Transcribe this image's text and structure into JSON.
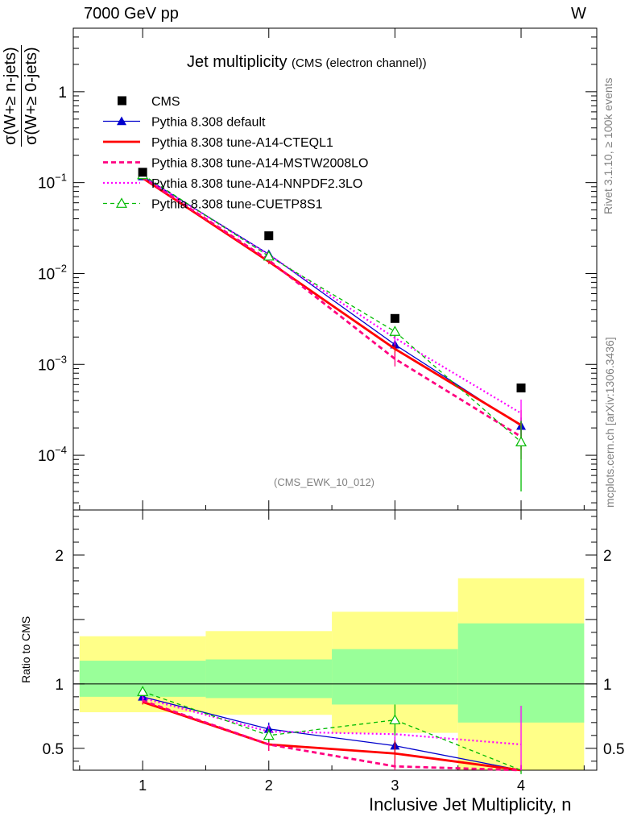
{
  "header": {
    "left": "7000 GeV pp",
    "right": "W"
  },
  "side_labels": {
    "rivet": "Rivet 3.1.10, ≥ 100k events",
    "mcplots": "mcplots.cern.ch [arXiv:1306.3436]"
  },
  "plot_title": {
    "main": "Jet multiplicity",
    "sub": "(CMS (electron channel))"
  },
  "analysis_tag": "(CMS_EWK_10_012)",
  "colors": {
    "data": "#000000",
    "default": "#0000cc",
    "cteql1": "#ff0000",
    "mstw": "#ff0080",
    "nnpdf": "#ff00ff",
    "cuetp8s1": "#00bb00",
    "band_outer": "#ffff88",
    "band_inner": "#99ff99",
    "side_text": "#808080"
  },
  "chart_data": [
    {
      "type": "scatter",
      "panel": "main",
      "title": "Jet multiplicity",
      "subtitle": "(CMS (electron channel))",
      "ylabel_num": "σ(W+≥ n-jets)",
      "ylabel_den": "σ(W+≥ 0-jets)",
      "yscale": "log",
      "ylim": [
        2.5e-05,
        5
      ],
      "xlim": [
        0.45,
        4.6
      ],
      "y_ticks": [
        {
          "v": 1,
          "base": "1",
          "exp": ""
        },
        {
          "v": 0.1,
          "base": "10",
          "exp": "−1"
        },
        {
          "v": 0.01,
          "base": "10",
          "exp": "−2"
        },
        {
          "v": 0.001,
          "base": "10",
          "exp": "−3"
        },
        {
          "v": 0.0001,
          "base": "10",
          "exp": "−4"
        }
      ],
      "legend": [
        {
          "label": "CMS",
          "key": "data",
          "style": "square"
        },
        {
          "label": "Pythia 8.308 default",
          "key": "default",
          "style": "solid-triangle"
        },
        {
          "label": "Pythia 8.308 tune-A14-CTEQL1",
          "key": "cteql1",
          "style": "solid-thick"
        },
        {
          "label": "Pythia 8.308 tune-A14-MSTW2008LO",
          "key": "mstw",
          "style": "dashed-thick"
        },
        {
          "label": "Pythia 8.308 tune-A14-NNPDF2.3LO",
          "key": "nnpdf",
          "style": "dotted"
        },
        {
          "label": "Pythia 8.308 tune-CUETP8S1",
          "key": "cuetp8s1",
          "style": "dashed-open-triangle"
        }
      ],
      "data": {
        "name": "CMS",
        "x": [
          1,
          2,
          3,
          4
        ],
        "y": [
          0.13,
          0.026,
          0.0032,
          0.00055
        ]
      },
      "series": [
        {
          "key": "default",
          "x": [
            1,
            2,
            3,
            4
          ],
          "y": [
            0.117,
            0.0163,
            0.00165,
            0.00021
          ],
          "err": [
            0.003,
            0.0008,
            0.0002,
            5e-05
          ]
        },
        {
          "key": "cteql1",
          "x": [
            1,
            2,
            3,
            4
          ],
          "y": [
            0.112,
            0.0135,
            0.00148,
            0.000215
          ],
          "err": [
            0.003,
            0.0008,
            0.0003,
            0.0001
          ]
        },
        {
          "key": "mstw",
          "x": [
            1,
            2,
            3,
            4
          ],
          "y": [
            0.114,
            0.014,
            0.00115,
            0.00016
          ],
          "err": [
            0.003,
            0.0008,
            0.0002,
            7e-05
          ]
        },
        {
          "key": "nnpdf",
          "x": [
            1,
            2,
            3,
            4
          ],
          "y": [
            0.117,
            0.016,
            0.00195,
            0.00029
          ],
          "err": [
            0.003,
            0.0008,
            0.0003,
            0.00012
          ]
        },
        {
          "key": "cuetp8s1",
          "x": [
            1,
            2,
            3,
            4
          ],
          "y": [
            0.122,
            0.0155,
            0.0023,
            0.00014
          ],
          "err": [
            0.003,
            0.0008,
            0.0003,
            0.0001
          ]
        }
      ]
    },
    {
      "type": "line",
      "panel": "ratio",
      "ylabel": "Ratio to CMS",
      "xlabel": "Inclusive Jet Multiplicity, n",
      "ylim": [
        0.33,
        2.35
      ],
      "xlim": [
        0.45,
        4.6
      ],
      "x_ticks": [
        "1",
        "2",
        "3",
        "4"
      ],
      "y_ticks": [
        0.5,
        1,
        2
      ],
      "y_tick_labels": [
        "0.5",
        "1",
        "2"
      ],
      "bands": [
        {
          "x0": 0.5,
          "x1": 1.5,
          "outer": [
            0.78,
            1.37
          ],
          "inner": [
            0.9,
            1.18
          ]
        },
        {
          "x0": 1.5,
          "x1": 2.5,
          "outer": [
            0.76,
            1.41
          ],
          "inner": [
            0.89,
            1.19
          ]
        },
        {
          "x0": 2.5,
          "x1": 3.5,
          "outer": [
            0.62,
            1.56
          ],
          "inner": [
            0.84,
            1.27
          ]
        },
        {
          "x0": 3.5,
          "x1": 4.5,
          "outer": [
            0.33,
            1.82
          ],
          "inner": [
            0.7,
            1.47
          ]
        }
      ],
      "series": [
        {
          "key": "default",
          "x": [
            1,
            2,
            3,
            4
          ],
          "y": [
            0.9,
            0.65,
            0.52,
            0.32
          ],
          "err": [
            0.02,
            0.05,
            0.07,
            0.05
          ]
        },
        {
          "key": "cteql1",
          "x": [
            1,
            2,
            3,
            4
          ],
          "y": [
            0.86,
            0.53,
            0.46,
            0.32
          ],
          "err": [
            0.02,
            0.05,
            0.1,
            0.05
          ]
        },
        {
          "key": "mstw",
          "x": [
            1,
            2,
            3,
            4
          ],
          "y": [
            0.87,
            0.53,
            0.36,
            0.32
          ],
          "err": [
            0.02,
            0.05,
            0.06,
            0.05
          ]
        },
        {
          "key": "nnpdf",
          "x": [
            1,
            2,
            3,
            4
          ],
          "y": [
            0.89,
            0.63,
            0.61,
            0.53
          ],
          "err": [
            0.02,
            0.05,
            0.05,
            0.3
          ]
        },
        {
          "key": "cuetp8s1",
          "x": [
            1,
            2,
            3,
            4
          ],
          "y": [
            0.94,
            0.6,
            0.72,
            0.25
          ],
          "err": [
            0.02,
            0.05,
            0.12,
            0.05
          ]
        }
      ]
    }
  ]
}
